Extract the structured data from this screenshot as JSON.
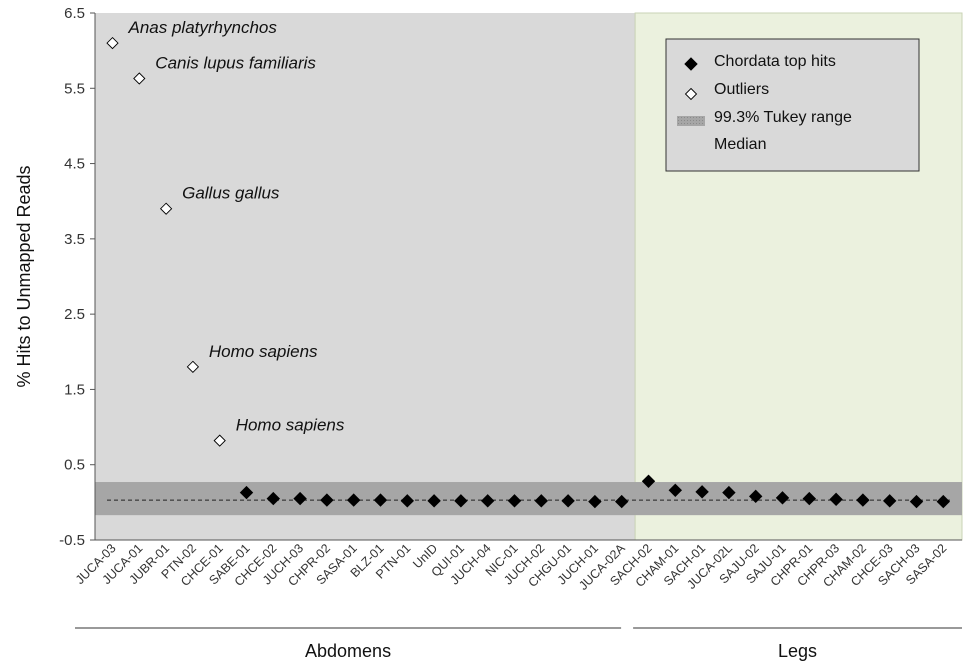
{
  "chart_data": {
    "type": "scatter",
    "ylabel": "% Hits to Unmapped  Reads",
    "ylim": [
      -0.5,
      6.5
    ],
    "yticks": [
      "6.5",
      "5.5",
      "4.5",
      "3.5",
      "2.5",
      "1.5",
      "0.5",
      "-0.5"
    ],
    "grid": false,
    "legend_position": "top-right",
    "colors": {
      "abdomens_region": "#d9d9d9",
      "legs_region": "#ebf1de",
      "tukey_band": "#a6a6a6",
      "top_hit_marker": "#000000",
      "outlier_marker": "#ffffff"
    },
    "groups": [
      {
        "name": "Abdomens",
        "from": "JUCA-03",
        "to": "JUCA-02A"
      },
      {
        "name": "Legs",
        "from": "SACH-02",
        "to": "SASA-02"
      }
    ],
    "categories": [
      "JUCA-03",
      "JUCA-01",
      "JUBR-01",
      "PTN-02",
      "CHCE-01",
      "SABE-01",
      "CHCE-02",
      "JUCH-03",
      "CHPR-02",
      "SASA-01",
      "BLZ-01",
      "PTN-01",
      "UnID",
      "QUI-01",
      "JUCH-04",
      "NIC-01",
      "JUCH-02",
      "CHGU-01",
      "JUCH-01",
      "JUCA-02A",
      "SACH-02",
      "CHAM-01",
      "SACH-01",
      "JUCA-02L",
      "SAJU-02",
      "SAJU-01",
      "CHPR-01",
      "CHPR-03",
      "CHAM-02",
      "CHCE-03",
      "SACH-03",
      "SASA-02"
    ],
    "series": [
      {
        "name": "Chordata top hits",
        "marker": "filled-diamond",
        "points": [
          {
            "x": "SABE-01",
            "y": 0.13
          },
          {
            "x": "CHCE-02",
            "y": 0.05
          },
          {
            "x": "JUCH-03",
            "y": 0.05
          },
          {
            "x": "CHPR-02",
            "y": 0.03
          },
          {
            "x": "SASA-01",
            "y": 0.03
          },
          {
            "x": "BLZ-01",
            "y": 0.03
          },
          {
            "x": "PTN-01",
            "y": 0.02
          },
          {
            "x": "UnID",
            "y": 0.02
          },
          {
            "x": "QUI-01",
            "y": 0.02
          },
          {
            "x": "JUCH-04",
            "y": 0.02
          },
          {
            "x": "NIC-01",
            "y": 0.02
          },
          {
            "x": "JUCH-02",
            "y": 0.02
          },
          {
            "x": "CHGU-01",
            "y": 0.02
          },
          {
            "x": "JUCH-01",
            "y": 0.01
          },
          {
            "x": "JUCA-02A",
            "y": 0.01
          },
          {
            "x": "SACH-02",
            "y": 0.28
          },
          {
            "x": "CHAM-01",
            "y": 0.16
          },
          {
            "x": "SACH-01",
            "y": 0.14
          },
          {
            "x": "JUCA-02L",
            "y": 0.13
          },
          {
            "x": "SAJU-02",
            "y": 0.08
          },
          {
            "x": "SAJU-01",
            "y": 0.06
          },
          {
            "x": "CHPR-01",
            "y": 0.05
          },
          {
            "x": "CHPR-03",
            "y": 0.04
          },
          {
            "x": "CHAM-02",
            "y": 0.03
          },
          {
            "x": "CHCE-03",
            "y": 0.02
          },
          {
            "x": "SACH-03",
            "y": 0.01
          },
          {
            "x": "SASA-02",
            "y": 0.01
          }
        ]
      },
      {
        "name": "Outliers",
        "marker": "open-diamond",
        "points": [
          {
            "x": "JUCA-03",
            "y": 6.1,
            "annotation": "Anas platyrhynchos"
          },
          {
            "x": "JUCA-01",
            "y": 5.63,
            "annotation": "Canis lupus familiaris"
          },
          {
            "x": "JUBR-01",
            "y": 3.9,
            "annotation": "Gallus gallus"
          },
          {
            "x": "PTN-02",
            "y": 1.8,
            "annotation": "Homo sapiens"
          },
          {
            "x": "CHCE-01",
            "y": 0.82,
            "annotation": "Homo sapiens"
          }
        ]
      }
    ],
    "tukey_range": {
      "name": "99.3% Tukey range",
      "low": -0.17,
      "high": 0.27
    },
    "median": {
      "name": "Median",
      "value": 0.03
    },
    "legend": [
      "Chordata top hits",
      "Outliers",
      "99.3% Tukey range",
      "Median"
    ]
  }
}
